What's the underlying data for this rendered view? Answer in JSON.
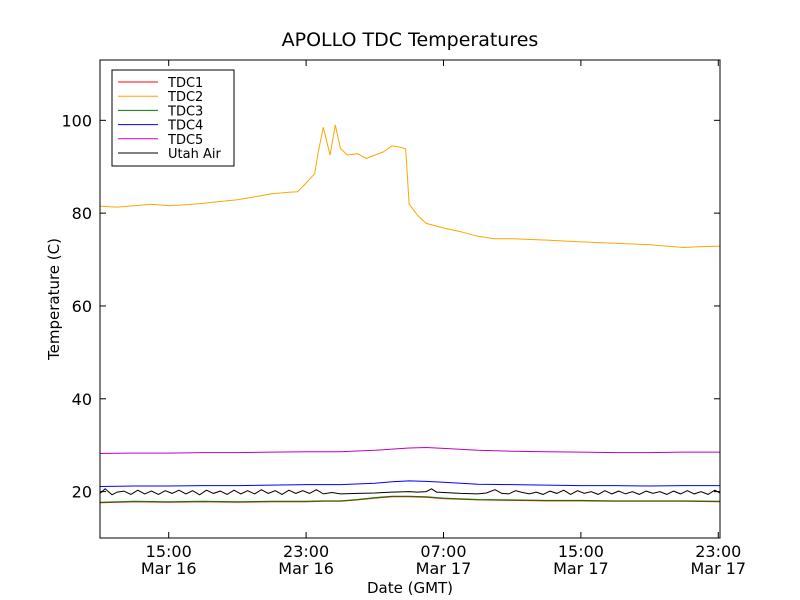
{
  "chart_data": {
    "type": "line",
    "title": "APOLLO TDC Temperatures",
    "xlabel": "Date (GMT)",
    "ylabel": "Temperature (C)",
    "x_unit": "hours since 2013-03-16 11:00 GMT",
    "xlim": [
      0,
      36.1
    ],
    "ylim": [
      10,
      113
    ],
    "x_ticks": [
      {
        "x": 4,
        "time": "15:00",
        "date": "Mar 16"
      },
      {
        "x": 12,
        "time": "23:00",
        "date": "Mar 16"
      },
      {
        "x": 20,
        "time": "07:00",
        "date": "Mar 17"
      },
      {
        "x": 28,
        "time": "15:00",
        "date": "Mar 17"
      },
      {
        "x": 36,
        "time": "23:00",
        "date": "Mar 17"
      }
    ],
    "y_ticks": [
      20,
      40,
      60,
      80,
      100
    ],
    "legend_position": "top-left",
    "series": [
      {
        "name": "TDC1",
        "color": "#ff0000",
        "x": [
          0,
          2,
          4,
          6,
          8,
          10,
          12,
          13,
          14,
          15,
          16,
          17,
          18,
          19,
          20,
          22,
          24,
          26,
          28,
          30,
          32,
          34,
          36.1
        ],
        "y": [
          17.6,
          17.8,
          17.7,
          17.8,
          17.7,
          17.8,
          17.8,
          17.9,
          17.9,
          18.2,
          18.6,
          18.9,
          18.9,
          18.8,
          18.5,
          18.2,
          18.1,
          18.0,
          18.0,
          17.9,
          17.9,
          17.9,
          17.8
        ]
      },
      {
        "name": "TDC2",
        "color": "#ffa500",
        "x": [
          0,
          1,
          2,
          3,
          4,
          5,
          6,
          7,
          8,
          9,
          10,
          11,
          11.5,
          12,
          12.5,
          12.7,
          13,
          13.4,
          13.7,
          14,
          14.4,
          15,
          15.5,
          16,
          16.5,
          17,
          17.5,
          17.8,
          18,
          18.5,
          19,
          20,
          21,
          22,
          23,
          24,
          26,
          28,
          30,
          32,
          33,
          34,
          35,
          36.1
        ],
        "y": [
          81.5,
          81.3,
          81.6,
          81.9,
          81.6,
          81.8,
          82.1,
          82.5,
          82.9,
          83.5,
          84.2,
          84.5,
          84.6,
          86.5,
          88.5,
          93,
          98.5,
          92.5,
          99,
          94,
          92.5,
          92.8,
          91.8,
          92.5,
          93.2,
          94.5,
          94.2,
          93.8,
          82,
          79.5,
          77.8,
          76.8,
          76,
          75,
          74.5,
          74.5,
          74.2,
          73.8,
          73.5,
          73.2,
          72.9,
          72.6,
          72.8,
          72.9
        ]
      },
      {
        "name": "TDC3",
        "color": "#008000",
        "x": [
          0,
          2,
          4,
          6,
          8,
          10,
          12,
          13,
          14,
          15,
          16,
          17,
          18,
          19,
          20,
          22,
          24,
          26,
          28,
          30,
          32,
          34,
          36.1
        ],
        "y": [
          17.7,
          17.9,
          17.8,
          17.9,
          17.8,
          17.9,
          17.9,
          18.0,
          18.0,
          18.3,
          18.7,
          19.0,
          19.0,
          18.9,
          18.6,
          18.3,
          18.2,
          18.1,
          18.1,
          18.0,
          18.0,
          18.0,
          17.9
        ]
      },
      {
        "name": "TDC4",
        "color": "#0000ff",
        "x": [
          0,
          2,
          4,
          6,
          8,
          10,
          12,
          14,
          16,
          17,
          18,
          19,
          20,
          22,
          24,
          26,
          28,
          30,
          32,
          34,
          36.1
        ],
        "y": [
          21.1,
          21.2,
          21.2,
          21.3,
          21.3,
          21.4,
          21.5,
          21.5,
          21.8,
          22.1,
          22.3,
          22.2,
          22.0,
          21.6,
          21.5,
          21.4,
          21.3,
          21.3,
          21.2,
          21.3,
          21.3
        ]
      },
      {
        "name": "TDC5",
        "color": "#bf00bf",
        "x": [
          0,
          2,
          4,
          6,
          8,
          10,
          12,
          14,
          16,
          18,
          19,
          20,
          22,
          24,
          26,
          28,
          30,
          32,
          34,
          36.1
        ],
        "y": [
          28.2,
          28.3,
          28.3,
          28.4,
          28.4,
          28.5,
          28.6,
          28.6,
          28.9,
          29.4,
          29.5,
          29.3,
          28.9,
          28.7,
          28.6,
          28.5,
          28.4,
          28.4,
          28.5,
          28.5
        ]
      },
      {
        "name": "Utah Air",
        "color": "#000000",
        "x": [
          0,
          0.3,
          0.7,
          1,
          1.4,
          1.8,
          2.2,
          2.6,
          3,
          3.4,
          3.8,
          4.2,
          4.6,
          5,
          5.4,
          5.8,
          6.2,
          6.6,
          7,
          7.4,
          7.8,
          8.2,
          8.6,
          9,
          9.4,
          9.8,
          10.2,
          10.6,
          11,
          11.4,
          11.8,
          12.2,
          12.6,
          13,
          13.5,
          14,
          15,
          16,
          17,
          18,
          18.5,
          19,
          19.3,
          19.6,
          20,
          21,
          22,
          22.5,
          23,
          23.4,
          23.8,
          24.2,
          24.6,
          25,
          25.4,
          25.8,
          26.2,
          26.6,
          27,
          27.4,
          27.8,
          28.2,
          28.6,
          29,
          29.4,
          29.8,
          30.2,
          30.6,
          31,
          31.4,
          31.8,
          32.2,
          32.6,
          33,
          33.4,
          33.8,
          34.2,
          34.6,
          35,
          35.4,
          35.8,
          36.1
        ],
        "y": [
          19.6,
          20.6,
          19.3,
          19.9,
          20.1,
          19.4,
          20.3,
          19.5,
          20.1,
          19.4,
          20.2,
          19.6,
          20.3,
          19.5,
          20.2,
          19.3,
          20.3,
          19.6,
          20.1,
          19.4,
          20.3,
          19.5,
          20.2,
          19.5,
          20.4,
          19.6,
          20.2,
          19.4,
          20.3,
          19.6,
          20.2,
          19.6,
          20.4,
          19.5,
          19.8,
          19.5,
          19.6,
          19.7,
          19.9,
          20.0,
          19.9,
          20.0,
          20.6,
          19.9,
          19.8,
          19.6,
          19.5,
          19.7,
          20.4,
          19.6,
          19.5,
          20.2,
          19.8,
          19.5,
          19.9,
          19.4,
          20.1,
          19.6,
          20.3,
          19.4,
          20.2,
          19.6,
          20.0,
          19.4,
          20.2,
          19.5,
          20.1,
          19.5,
          20.0,
          19.4,
          20.1,
          19.6,
          20.0,
          19.4,
          20.1,
          19.5,
          20.2,
          19.5,
          20.0,
          19.4,
          20.3,
          19.7
        ]
      }
    ]
  }
}
